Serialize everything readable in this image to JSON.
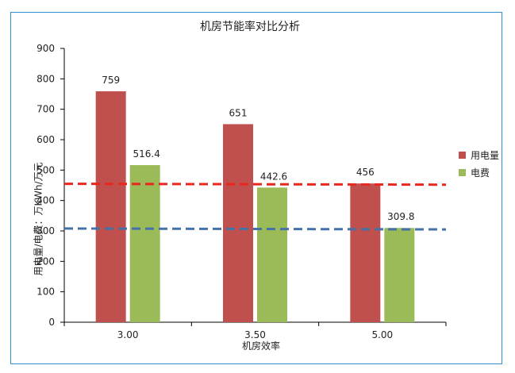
{
  "chart_data": {
    "type": "bar",
    "title": "机房节能率对比分析",
    "xlabel": "机房效率",
    "ylabel": "用电量/电费：万KWh/万元",
    "categories": [
      "3.00",
      "3.50",
      "5.00"
    ],
    "series": [
      {
        "name": "用电量",
        "values": [
          759,
          651,
          456
        ],
        "color": "#c0504d"
      },
      {
        "name": "电费",
        "values": [
          516.4,
          442.6,
          309.8
        ],
        "color": "#9bbb59"
      }
    ],
    "data_labels": [
      [
        "759",
        "516.4"
      ],
      [
        "651",
        "442.6"
      ],
      [
        "456",
        "309.8"
      ]
    ],
    "ylim": [
      0,
      900
    ],
    "yticks": [
      0,
      100,
      200,
      300,
      400,
      500,
      600,
      700,
      800,
      900
    ],
    "grid": false,
    "legend_position": "right",
    "reference_lines": [
      {
        "color": "#e8271e",
        "style": "dashed",
        "y_start": 455,
        "y_end": 452
      },
      {
        "color": "#4472a8",
        "style": "dashed",
        "y_start": 308,
        "y_end": 305
      }
    ]
  }
}
